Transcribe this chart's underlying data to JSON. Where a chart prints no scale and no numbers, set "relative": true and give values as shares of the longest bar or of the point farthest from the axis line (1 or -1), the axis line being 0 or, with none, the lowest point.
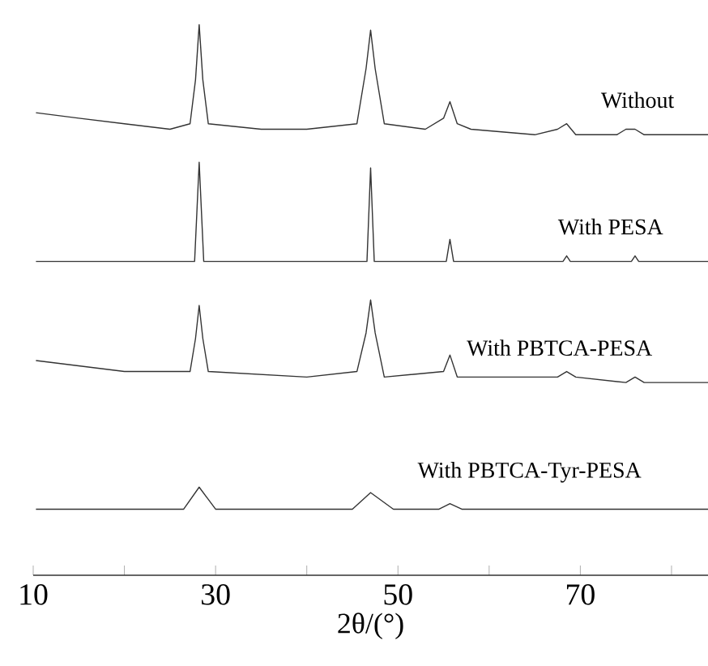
{
  "chart_data": {
    "type": "line",
    "relative": true,
    "xlabel": "2θ/(°)",
    "xlim": [
      10,
      84
    ],
    "xticks": [
      10,
      {
        "value": 20,
        "label": null
      },
      30,
      {
        "value": 40,
        "label": null
      },
      50,
      {
        "value": 60,
        "label": null
      },
      70,
      {
        "value": 80,
        "label": null
      }
    ],
    "grid": false,
    "legend": false,
    "marker": "none",
    "line_style": "solid",
    "series": [
      {
        "name": "Without",
        "color": "#333333",
        "x": [
          10.3,
          15,
          20,
          25,
          27.2,
          27.8,
          28.2,
          28.6,
          29.2,
          35,
          40,
          45.5,
          46.5,
          47,
          47.5,
          48.5,
          53,
          55,
          55.7,
          56.5,
          58,
          65,
          67.5,
          68.5,
          69.5,
          74,
          75,
          76,
          77,
          80,
          84
        ],
        "values": [
          0.84,
          0.83,
          0.82,
          0.81,
          0.82,
          0.9,
          1.0,
          0.9,
          0.82,
          0.81,
          0.81,
          0.82,
          0.92,
          0.99,
          0.92,
          0.82,
          0.81,
          0.83,
          0.86,
          0.82,
          0.81,
          0.8,
          0.81,
          0.82,
          0.8,
          0.8,
          0.81,
          0.81,
          0.8,
          0.8,
          0.8
        ]
      },
      {
        "name": "With PESA",
        "color": "#333333",
        "x": [
          10.3,
          20,
          27.7,
          28.2,
          28.7,
          40,
          46.6,
          47,
          47.4,
          55.3,
          55.7,
          56.1,
          68.1,
          68.5,
          68.9,
          75.6,
          76,
          76.4,
          84
        ],
        "values": [
          0.57,
          0.57,
          0.57,
          0.75,
          0.57,
          0.57,
          0.57,
          0.74,
          0.57,
          0.57,
          0.61,
          0.57,
          0.57,
          0.58,
          0.57,
          0.57,
          0.58,
          0.57,
          0.57
        ]
      },
      {
        "name": "With PBTCA-PESA",
        "color": "#333333",
        "x": [
          10.3,
          20,
          27.2,
          27.8,
          28.2,
          28.6,
          29.2,
          40,
          45.5,
          46.5,
          47,
          47.5,
          48.5,
          55,
          55.7,
          56.5,
          67.5,
          68.5,
          69.5,
          75,
          76,
          77,
          84
        ],
        "values": [
          0.39,
          0.37,
          0.37,
          0.43,
          0.49,
          0.43,
          0.37,
          0.36,
          0.37,
          0.44,
          0.5,
          0.44,
          0.36,
          0.37,
          0.4,
          0.36,
          0.36,
          0.37,
          0.36,
          0.35,
          0.36,
          0.35,
          0.35
        ]
      },
      {
        "name": "With PBTCA-Tyr-PESA",
        "color": "#333333",
        "x": [
          10.3,
          20,
          26.5,
          28.2,
          30,
          40,
          45,
          47,
          49.5,
          54.5,
          55.7,
          57,
          84
        ],
        "values": [
          0.12,
          0.12,
          0.12,
          0.16,
          0.12,
          0.12,
          0.12,
          0.15,
          0.12,
          0.12,
          0.13,
          0.12,
          0.12
        ]
      }
    ]
  }
}
